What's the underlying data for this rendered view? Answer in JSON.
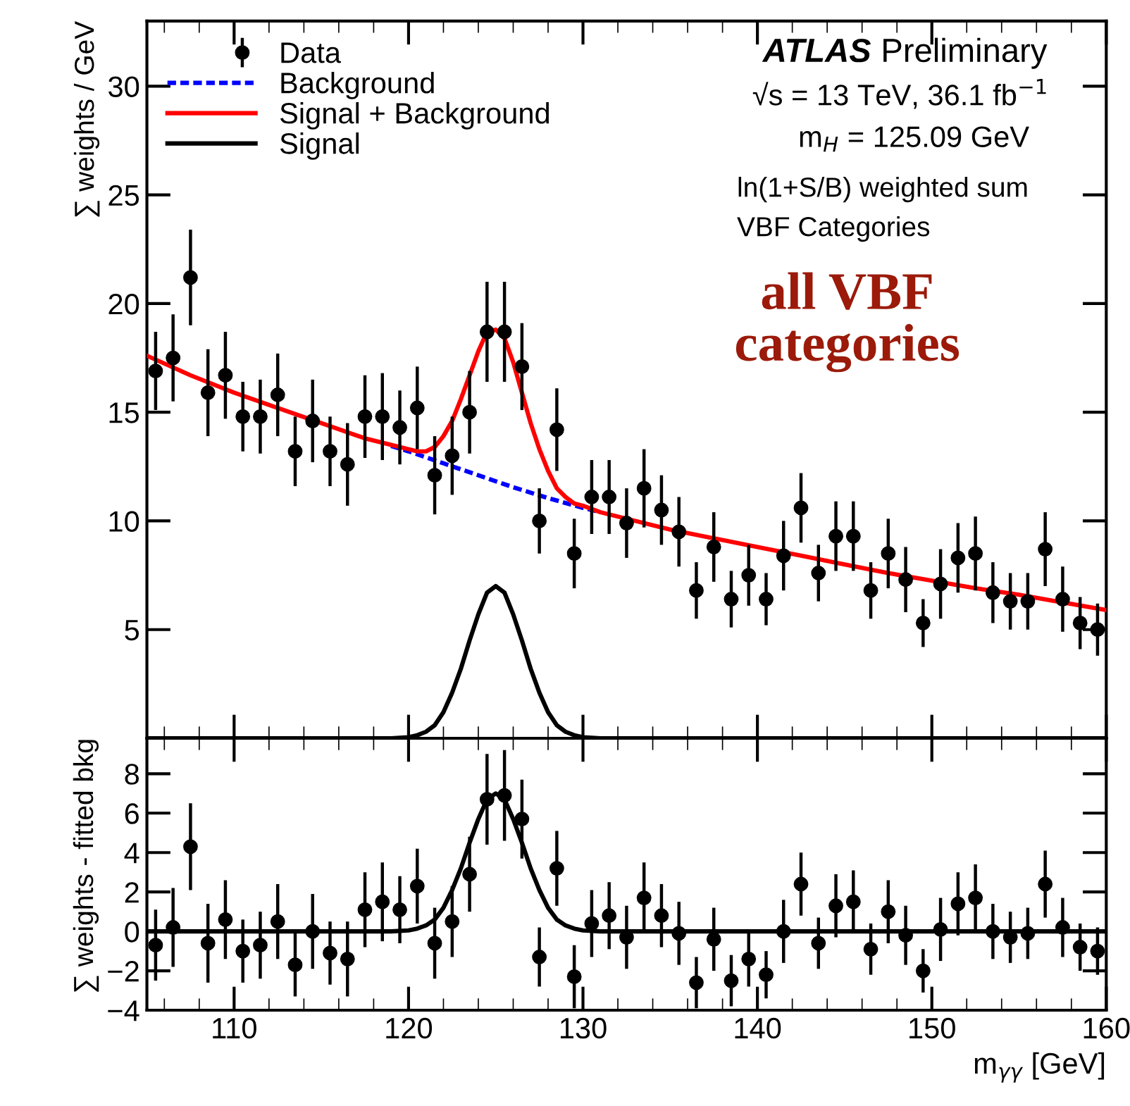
{
  "chart_data": [
    {
      "type": "scatter",
      "ylabel": "∑ weights / GeV",
      "xlim": [
        105,
        160
      ],
      "xticks": [
        110,
        120,
        130,
        140,
        150,
        160
      ],
      "ylim": [
        0,
        33
      ],
      "yticks": [
        5,
        10,
        15,
        20,
        25,
        30
      ],
      "tick_labels": "y",
      "legend": "top left",
      "annotations": [
        "ATLAS",
        "Preliminary",
        "√s = 13 TeV, 36.1 fb$^{−1}$",
        "m$_{H}$ = 125.09 GeV",
        "ln(1+S/B) weighted sum",
        "VBF Categories",
        "all VBF\ncategories"
      ],
      "series": [
        {
          "name": "Data",
          "type": "scatter",
          "marker": "circle",
          "color": "#000000",
          "x": [
            105.5,
            106.5,
            107.5,
            108.5,
            109.5,
            110.5,
            111.5,
            112.5,
            113.5,
            114.5,
            115.5,
            116.5,
            117.5,
            118.5,
            119.5,
            120.5,
            121.5,
            122.5,
            123.5,
            124.5,
            125.5,
            126.5,
            127.5,
            128.5,
            129.5,
            130.5,
            131.5,
            132.5,
            133.5,
            134.5,
            135.5,
            136.5,
            137.5,
            138.5,
            139.5,
            140.5,
            141.5,
            142.5,
            143.5,
            144.5,
            145.5,
            146.5,
            147.5,
            148.5,
            149.5,
            150.5,
            151.5,
            152.5,
            153.5,
            154.5,
            155.5,
            156.5,
            157.5,
            158.5,
            159.5
          ],
          "values": [
            16.9,
            17.5,
            21.2,
            15.9,
            16.7,
            14.8,
            14.8,
            15.8,
            13.2,
            14.6,
            13.2,
            12.6,
            14.8,
            14.8,
            14.3,
            15.2,
            12.1,
            13.0,
            15.0,
            18.7,
            18.7,
            17.1,
            10.0,
            14.2,
            8.5,
            11.1,
            11.1,
            9.9,
            11.5,
            10.5,
            9.5,
            6.8,
            8.8,
            6.4,
            7.5,
            6.4,
            8.4,
            10.6,
            7.6,
            9.3,
            9.3,
            6.8,
            8.5,
            7.3,
            5.3,
            7.1,
            8.3,
            8.5,
            6.7,
            6.3,
            6.3,
            8.7,
            6.4,
            5.3,
            5.0
          ],
          "errors": [
            1.8,
            2.0,
            2.2,
            2.0,
            2.0,
            1.6,
            1.7,
            1.9,
            1.6,
            1.9,
            1.6,
            1.9,
            1.9,
            2.0,
            1.7,
            1.9,
            1.8,
            1.8,
            1.9,
            2.3,
            2.3,
            2.0,
            1.5,
            1.9,
            1.6,
            1.7,
            1.7,
            1.6,
            1.8,
            1.6,
            1.6,
            1.3,
            1.6,
            1.3,
            1.4,
            1.2,
            1.6,
            1.6,
            1.3,
            1.6,
            1.6,
            1.3,
            1.6,
            1.5,
            1.1,
            1.6,
            1.6,
            1.7,
            1.4,
            1.3,
            1.3,
            1.7,
            1.5,
            1.2,
            1.2
          ]
        },
        {
          "name": "Background",
          "type": "line",
          "line_style": "dashed",
          "color": "#0000ff",
          "x": [
            119,
            120,
            122,
            124,
            126,
            128,
            130,
            131
          ],
          "values": [
            13.45,
            13.2,
            12.65,
            12.1,
            11.55,
            11.05,
            10.6,
            10.4
          ]
        },
        {
          "name": "Signal + Background",
          "type": "line",
          "line_style": "solid",
          "color": "#ff0000",
          "x": [
            105,
            107.5,
            110,
            112.5,
            115,
            117.5,
            119,
            120,
            120.5,
            121,
            121.5,
            122,
            122.5,
            123,
            123.5,
            124,
            124.5,
            125,
            125.5,
            126,
            126.5,
            127,
            127.5,
            128,
            128.5,
            129,
            129.5,
            130,
            131,
            132.5,
            135,
            137.5,
            140,
            142.5,
            145,
            147.5,
            150,
            152.5,
            155,
            157.5,
            160
          ],
          "values": [
            17.6,
            16.7,
            15.9,
            15.2,
            14.5,
            13.8,
            13.5,
            13.3,
            13.2,
            13.2,
            13.4,
            13.9,
            14.6,
            15.6,
            16.7,
            17.8,
            18.7,
            18.8,
            18.4,
            17.3,
            15.9,
            14.5,
            13.3,
            12.3,
            11.5,
            11.1,
            10.8,
            10.7,
            10.4,
            10.1,
            9.6,
            9.2,
            8.8,
            8.4,
            8.0,
            7.6,
            7.25,
            6.9,
            6.6,
            6.25,
            5.9
          ]
        },
        {
          "name": "Signal",
          "type": "line",
          "line_style": "solid",
          "color": "#000000",
          "x": [
            105,
            119,
            120,
            120.5,
            121,
            121.5,
            122,
            122.5,
            123,
            123.5,
            124,
            124.5,
            125,
            125.5,
            126,
            126.5,
            127,
            127.5,
            128,
            128.5,
            129,
            129.5,
            130,
            131,
            160
          ],
          "values": [
            0,
            0,
            0.05,
            0.14,
            0.3,
            0.6,
            1.2,
            2.1,
            3.2,
            4.5,
            5.7,
            6.7,
            7.0,
            6.7,
            5.7,
            4.5,
            3.2,
            2.1,
            1.2,
            0.6,
            0.3,
            0.14,
            0.05,
            0,
            0
          ]
        }
      ]
    },
    {
      "type": "scatter",
      "ylabel": "∑ weights - fitted bkg",
      "xlabel": "m$_{γγ}$ [GeV]",
      "xlim": [
        105,
        160
      ],
      "xticks": [
        110,
        120,
        130,
        140,
        150,
        160
      ],
      "ylim": [
        -4,
        9.8
      ],
      "yticks": [
        {
          "value": -4,
          "label": "−4"
        },
        {
          "value": -2,
          "label": "−2"
        },
        0,
        2,
        4,
        6,
        8
      ],
      "series": [
        {
          "type": "scatter",
          "marker": "circle",
          "color": "#000000",
          "x": [
            105.5,
            106.5,
            107.5,
            108.5,
            109.5,
            110.5,
            111.5,
            112.5,
            113.5,
            114.5,
            115.5,
            116.5,
            117.5,
            118.5,
            119.5,
            120.5,
            121.5,
            122.5,
            123.5,
            124.5,
            125.5,
            126.5,
            127.5,
            128.5,
            129.5,
            130.5,
            131.5,
            132.5,
            133.5,
            134.5,
            135.5,
            136.5,
            137.5,
            138.5,
            139.5,
            140.5,
            141.5,
            142.5,
            143.5,
            144.5,
            145.5,
            146.5,
            147.5,
            148.5,
            149.5,
            150.5,
            151.5,
            152.5,
            153.5,
            154.5,
            155.5,
            156.5,
            157.5,
            158.5,
            159.5
          ],
          "values": [
            -0.7,
            0.2,
            4.3,
            -0.6,
            0.6,
            -1.0,
            -0.7,
            0.5,
            -1.7,
            0.0,
            -1.1,
            -1.4,
            1.1,
            1.5,
            1.1,
            2.3,
            -0.6,
            0.5,
            2.9,
            6.7,
            6.9,
            5.7,
            -1.3,
            3.2,
            -2.3,
            0.4,
            0.8,
            -0.3,
            1.7,
            0.8,
            -0.1,
            -2.6,
            -0.4,
            -2.5,
            -1.4,
            -2.2,
            0.0,
            2.4,
            -0.6,
            1.3,
            1.5,
            -0.9,
            1.0,
            -0.2,
            -2.0,
            0.1,
            1.4,
            1.7,
            0.0,
            -0.3,
            -0.1,
            2.4,
            0.2,
            -0.8,
            -1.0
          ],
          "errors": [
            1.8,
            2.0,
            2.2,
            2.0,
            2.0,
            1.6,
            1.7,
            1.9,
            1.6,
            1.9,
            1.6,
            1.9,
            1.9,
            2.0,
            1.7,
            1.9,
            1.8,
            1.8,
            1.9,
            2.3,
            2.3,
            2.0,
            1.5,
            1.9,
            1.6,
            1.7,
            1.7,
            1.6,
            1.8,
            1.6,
            1.6,
            1.3,
            1.6,
            1.3,
            1.4,
            1.2,
            1.6,
            1.6,
            1.3,
            1.6,
            1.6,
            1.3,
            1.6,
            1.5,
            1.1,
            1.6,
            1.6,
            1.7,
            1.4,
            1.3,
            1.3,
            1.7,
            1.5,
            1.2,
            1.2
          ]
        },
        {
          "type": "line",
          "line_style": "solid",
          "color": "#000000",
          "x": [
            105,
            119,
            120,
            120.5,
            121,
            121.5,
            122,
            122.5,
            123,
            123.5,
            124,
            124.5,
            125,
            125.5,
            126,
            126.5,
            127,
            127.5,
            128,
            128.5,
            129,
            129.5,
            130,
            131,
            160
          ],
          "values": [
            0,
            0,
            0.05,
            0.14,
            0.3,
            0.6,
            1.2,
            2.1,
            3.2,
            4.5,
            5.7,
            6.7,
            7.0,
            6.7,
            5.7,
            4.5,
            3.2,
            2.1,
            1.2,
            0.6,
            0.3,
            0.14,
            0.05,
            0,
            0
          ]
        }
      ]
    }
  ]
}
